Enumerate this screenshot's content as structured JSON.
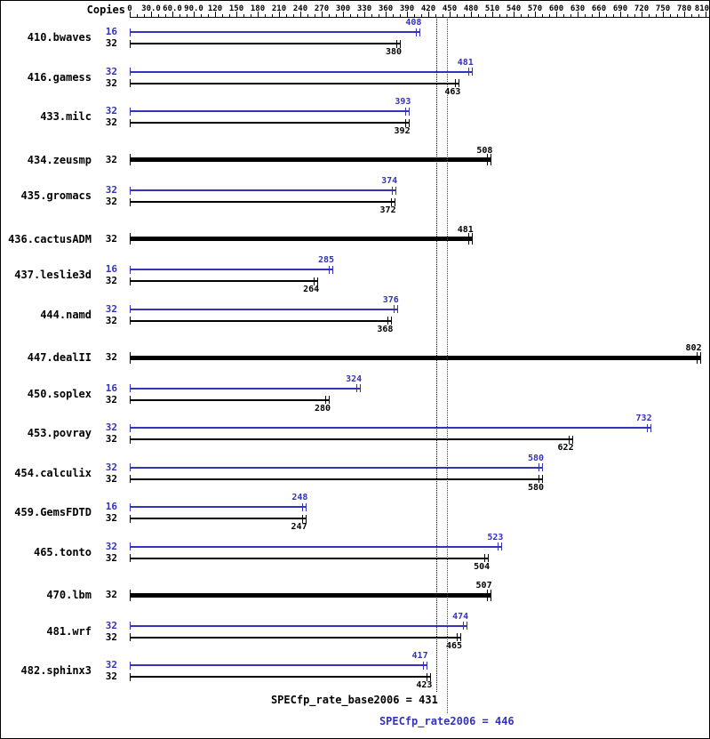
{
  "header": {
    "copies_label": "Copies"
  },
  "chart_data": {
    "type": "bar",
    "orientation": "horizontal",
    "axis": {
      "min": 0,
      "max": 815,
      "tick_interval": 30,
      "minor_tick_interval": 10,
      "tick_labels": [
        "0",
        "30.0",
        "60.0",
        "90.0",
        "120",
        "150",
        "180",
        "210",
        "240",
        "270",
        "300",
        "330",
        "360",
        "390",
        "420",
        "450",
        "480",
        "510",
        "540",
        "570",
        "600",
        "630",
        "660",
        "690",
        "720",
        "750",
        "780",
        "810"
      ]
    },
    "colors": {
      "peak": "#3333bb",
      "base": "#000000"
    },
    "benchmarks": [
      {
        "name": "410.bwaves",
        "bars": [
          {
            "type": "peak",
            "copies": 16,
            "value": 408
          },
          {
            "type": "base",
            "copies": 32,
            "value": 380
          }
        ]
      },
      {
        "name": "416.gamess",
        "bars": [
          {
            "type": "peak",
            "copies": 32,
            "value": 481
          },
          {
            "type": "base",
            "copies": 32,
            "value": 463
          }
        ]
      },
      {
        "name": "433.milc",
        "bars": [
          {
            "type": "peak",
            "copies": 32,
            "value": 393
          },
          {
            "type": "base",
            "copies": 32,
            "value": 392
          }
        ]
      },
      {
        "name": "434.zeusmp",
        "bars": [
          {
            "type": "single",
            "copies": 32,
            "value": 508
          }
        ]
      },
      {
        "name": "435.gromacs",
        "bars": [
          {
            "type": "peak",
            "copies": 32,
            "value": 374
          },
          {
            "type": "base",
            "copies": 32,
            "value": 372
          }
        ]
      },
      {
        "name": "436.cactusADM",
        "bars": [
          {
            "type": "single",
            "copies": 32,
            "value": 481
          }
        ]
      },
      {
        "name": "437.leslie3d",
        "bars": [
          {
            "type": "peak",
            "copies": 16,
            "value": 285
          },
          {
            "type": "base",
            "copies": 32,
            "value": 264
          }
        ]
      },
      {
        "name": "444.namd",
        "bars": [
          {
            "type": "peak",
            "copies": 32,
            "value": 376
          },
          {
            "type": "base",
            "copies": 32,
            "value": 368
          }
        ]
      },
      {
        "name": "447.dealII",
        "bars": [
          {
            "type": "single",
            "copies": 32,
            "value": 802
          }
        ]
      },
      {
        "name": "450.soplex",
        "bars": [
          {
            "type": "peak",
            "copies": 16,
            "value": 324
          },
          {
            "type": "base",
            "copies": 32,
            "value": 280
          }
        ]
      },
      {
        "name": "453.povray",
        "bars": [
          {
            "type": "peak",
            "copies": 32,
            "value": 732
          },
          {
            "type": "base",
            "copies": 32,
            "value": 622
          }
        ]
      },
      {
        "name": "454.calculix",
        "bars": [
          {
            "type": "peak",
            "copies": 32,
            "value": 580
          },
          {
            "type": "base",
            "copies": 32,
            "value": 580
          }
        ]
      },
      {
        "name": "459.GemsFDTD",
        "bars": [
          {
            "type": "peak",
            "copies": 16,
            "value": 248
          },
          {
            "type": "base",
            "copies": 32,
            "value": 247
          }
        ]
      },
      {
        "name": "465.tonto",
        "bars": [
          {
            "type": "peak",
            "copies": 32,
            "value": 523
          },
          {
            "type": "base",
            "copies": 32,
            "value": 504
          }
        ]
      },
      {
        "name": "470.lbm",
        "bars": [
          {
            "type": "single",
            "copies": 32,
            "value": 507
          }
        ]
      },
      {
        "name": "481.wrf",
        "bars": [
          {
            "type": "peak",
            "copies": 32,
            "value": 474
          },
          {
            "type": "base",
            "copies": 32,
            "value": 465
          }
        ]
      },
      {
        "name": "482.sphinx3",
        "bars": [
          {
            "type": "peak",
            "copies": 32,
            "value": 417
          },
          {
            "type": "base",
            "copies": 32,
            "value": 423
          }
        ]
      }
    ],
    "reference_lines": [
      {
        "name": "SPECfp_rate_base2006",
        "value": 431,
        "label": "SPECfp_rate_base2006 = 431",
        "color": "#000000"
      },
      {
        "name": "SPECfp_rate2006",
        "value": 446,
        "label": "SPECfp_rate2006 = 446",
        "color": "#3333bb"
      }
    ]
  }
}
